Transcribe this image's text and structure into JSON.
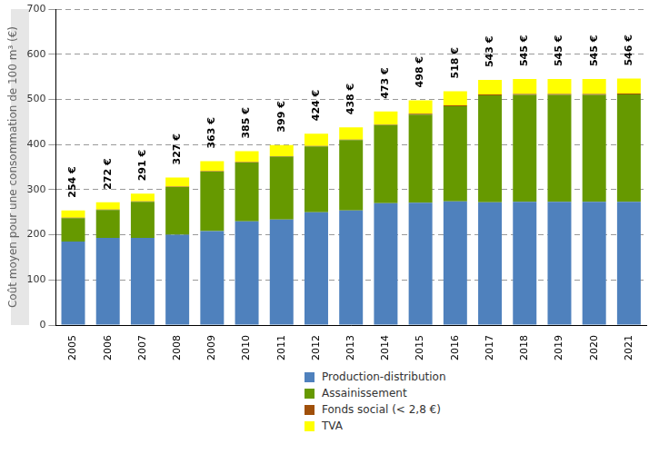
{
  "chart_data": {
    "type": "bar",
    "y_label": "Coût moyen pour une consommation de 100 m³ (€)",
    "categories": [
      "2005",
      "2006",
      "2007",
      "2008",
      "2009",
      "2010",
      "2011",
      "2012",
      "2013",
      "2014",
      "2015",
      "2016",
      "2017",
      "2018",
      "2019",
      "2020",
      "2021"
    ],
    "series": [
      {
        "name": "Production-distribution",
        "color": "#4f81bd",
        "values": [
          185,
          193,
          193,
          200,
          208,
          230,
          234,
          250,
          254,
          270,
          271,
          274,
          272,
          273,
          273,
          273,
          273
        ]
      },
      {
        "name": "Assainissement",
        "color": "#669900",
        "values": [
          52,
          62,
          80,
          106,
          132,
          130,
          139,
          146,
          156,
          173,
          195,
          211,
          237,
          237,
          237,
          237,
          238
        ]
      },
      {
        "name": "Fonds social (< 2,8 €)",
        "color": "#a0500a",
        "values": [
          1,
          1,
          1,
          1,
          1,
          1,
          1,
          1,
          1,
          1,
          2,
          2,
          2,
          2,
          2,
          2,
          2
        ]
      },
      {
        "name": "TVA",
        "color": "#ffff00",
        "values": [
          16,
          16,
          17,
          20,
          22,
          24,
          25,
          27,
          27,
          29,
          30,
          31,
          32,
          33,
          33,
          33,
          33
        ]
      }
    ],
    "totals": [
      254,
      272,
      291,
      327,
      363,
      385,
      399,
      424,
      438,
      473,
      498,
      518,
      543,
      545,
      545,
      545,
      546
    ],
    "total_labels": [
      "254 €",
      "272 €",
      "291 €",
      "327 €",
      "363 €",
      "385 €",
      "399 €",
      "424 €",
      "438 €",
      "473 €",
      "498 €",
      "518 €",
      "543 €",
      "545 €",
      "545 €",
      "545 €",
      "546 €"
    ],
    "ylim": [
      0,
      700
    ],
    "yticks": [
      0,
      100,
      200,
      300,
      400,
      500,
      600,
      700
    ],
    "grid": true,
    "stacked": true,
    "legend": "bottom"
  }
}
